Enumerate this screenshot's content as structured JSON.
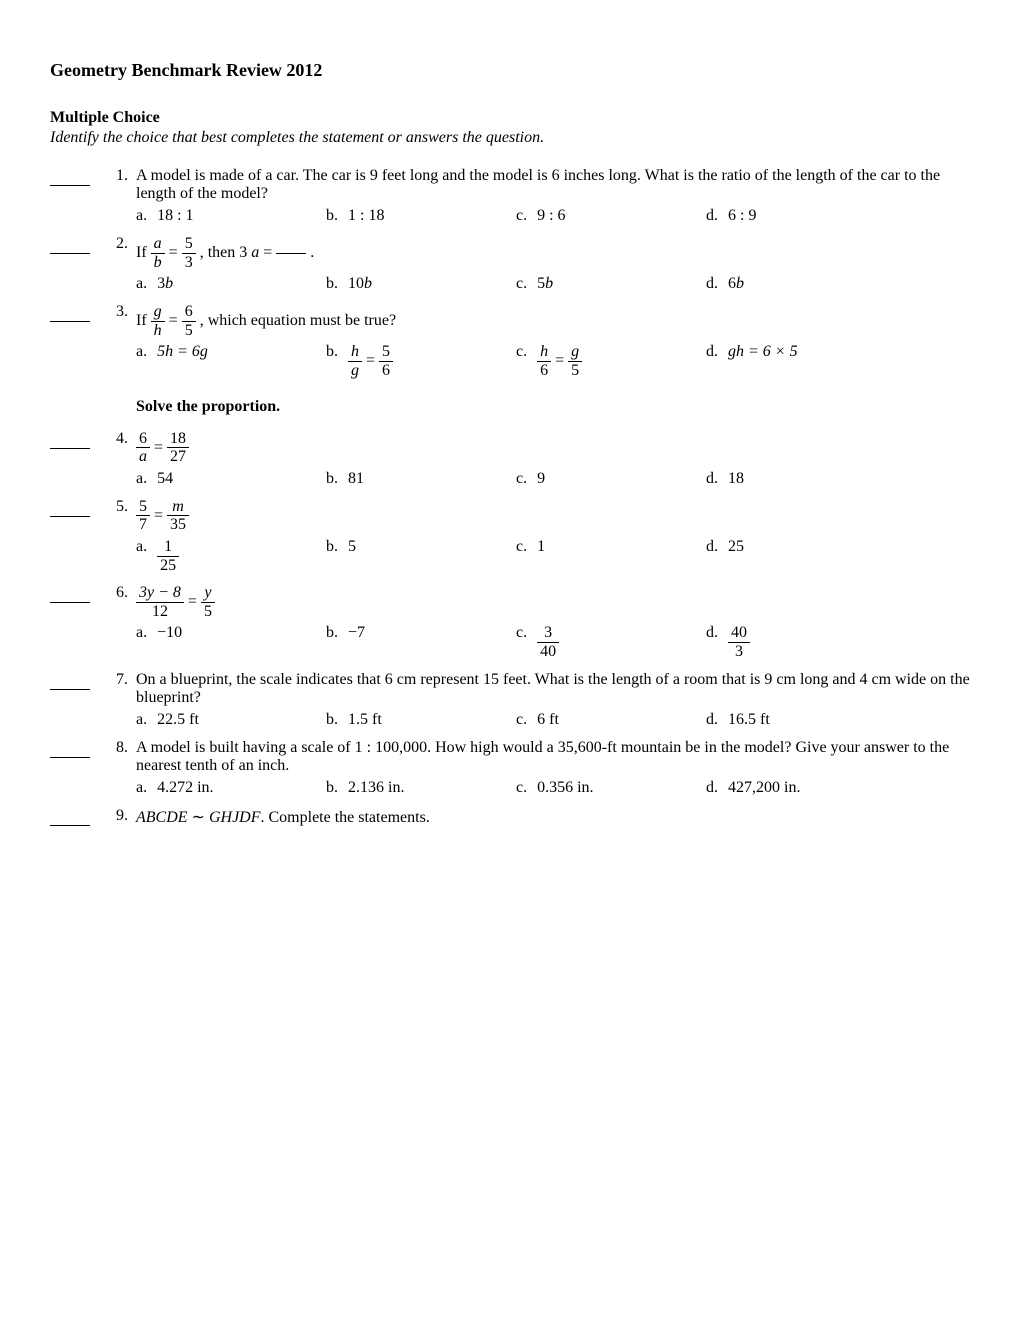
{
  "title": "Geometry Benchmark Review 2012",
  "section_heading": "Multiple Choice",
  "section_sub": "Identify the choice that best completes the statement or answers the question.",
  "instruction": "Solve the proportion.",
  "q1": {
    "num": "1.",
    "text": "A model is made of a car. The car is 9 feet long and the model is 6 inches long. What is the ratio of the length of the car to the length of the model?",
    "a": "18 : 1",
    "b": "1 : 18",
    "c": "9 : 6",
    "d": "6 : 9"
  },
  "q2": {
    "num": "2.",
    "prefix": "If ",
    "frac_num": "a",
    "frac_den": "b",
    "eq": " = ",
    "frac2_num": "5",
    "frac2_den": "3",
    "suffix": ", then 3",
    "var": "a",
    "suffix2": " = ",
    "a_pre": "3",
    "a_var": "b",
    "b_pre": "10",
    "b_var": "b",
    "c_pre": "5",
    "c_var": "b",
    "d_pre": "6",
    "d_var": "b"
  },
  "q3": {
    "num": "3.",
    "prefix": "If ",
    "frac_num": "g",
    "frac_den": "h",
    "eq": " = ",
    "frac2_num": "6",
    "frac2_den": "5",
    "suffix": ", which equation must be true?",
    "a": "5h = 6g",
    "b_num": "h",
    "b_den": "g",
    "b_eq": " = ",
    "b_num2": "5",
    "b_den2": "6",
    "c_num": "h",
    "c_den": "6",
    "c_eq": " = ",
    "c_num2": "g",
    "c_den2": "5",
    "d": "gh = 6 × 5"
  },
  "q4": {
    "num": "4.",
    "frac_num": "6",
    "frac_den": "a",
    "eq": " = ",
    "frac2_num": "18",
    "frac2_den": "27",
    "a": "54",
    "b": "81",
    "c": "9",
    "d": "18"
  },
  "q5": {
    "num": "5.",
    "frac_num": "5",
    "frac_den": "7",
    "eq": " = ",
    "frac2_num": "m",
    "frac2_den": "35",
    "a_num": "1",
    "a_den": "25",
    "b": "5",
    "c": "1",
    "d": "25"
  },
  "q6": {
    "num": "6.",
    "frac_num": "3y − 8",
    "frac_den": "12",
    "eq": " = ",
    "frac2_num": "y",
    "frac2_den": "5",
    "a": "−10",
    "b": "−7",
    "c_num": "3",
    "c_den": "40",
    "d_num": "40",
    "d_den": "3"
  },
  "q7": {
    "num": "7.",
    "text": "On a blueprint, the scale indicates that 6 cm represent 15 feet. What is the length of a room that is 9 cm long and 4 cm wide on the blueprint?",
    "a": "22.5 ft",
    "b": "1.5 ft",
    "c": "6 ft",
    "d": "16.5 ft"
  },
  "q8": {
    "num": "8.",
    "text": "A model is built having a scale of 1 : 100,000. How high would a 35,600-ft mountain be in the model? Give your answer to the nearest tenth of an inch.",
    "a": "4.272 in.",
    "b": "2.136 in.",
    "c": "0.356 in.",
    "d": "427,200 in."
  },
  "q9": {
    "num": "9.",
    "poly1": "ABCDE",
    "tilde": " ∼ ",
    "poly2": "GHJDF",
    "suffix": ". Complete the statements."
  },
  "labels": {
    "a": "a.",
    "b": "b.",
    "c": "c.",
    "d": "d."
  }
}
